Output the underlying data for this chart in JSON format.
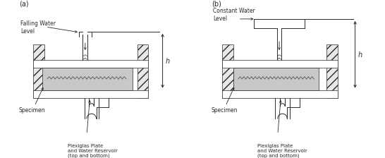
{
  "fig_width": 5.46,
  "fig_height": 2.24,
  "dpi": 100,
  "bg_color": "#ffffff",
  "label_a": "(a)",
  "label_b": "(b)",
  "text_falling": "Falling Water\nLevel",
  "text_constant": "Constant Water\nLevel",
  "text_h": "h",
  "text_specimen": "Specimen",
  "text_plexiglas": "Plexiglas Plate\nand Water Reservoir\n(top and bottom)",
  "line_color": "#2a2a2a",
  "hatch_pattern": "///",
  "specimen_fill": "#c8c8c8",
  "plate_fill": "#ffffff",
  "post_fill": "#e8e8e8"
}
